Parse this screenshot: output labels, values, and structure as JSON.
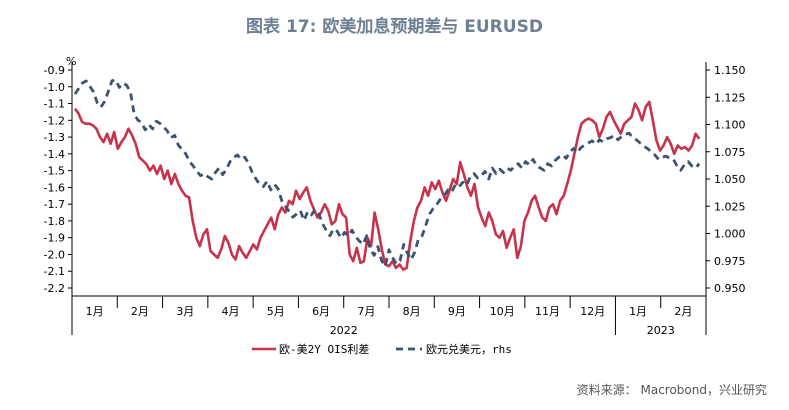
{
  "title": "图表 17: 欧美加息预期差与 EURUSD",
  "source": "资料来源： Macrobond，兴业研究",
  "chart_data": {
    "type": "line",
    "y_unit_label": "%",
    "ylim_left": [
      -2.2,
      -0.9
    ],
    "ylim_right": [
      0.95,
      1.15
    ],
    "left_ticks": [
      "-0.9",
      "-1.0",
      "-1.1",
      "-1.2",
      "-1.3",
      "-1.4",
      "-1.5",
      "-1.6",
      "-1.7",
      "-1.8",
      "-1.9",
      "-2.0",
      "-2.1",
      "-2.2"
    ],
    "right_ticks": [
      "1.150",
      "1.125",
      "1.100",
      "1.075",
      "1.050",
      "1.025",
      "1.000",
      "0.975",
      "0.950"
    ],
    "month_labels": [
      "1月",
      "2月",
      "3月",
      "4月",
      "5月",
      "6月",
      "7月",
      "8月",
      "9月",
      "10月",
      "11月",
      "12月",
      "1月",
      "2月"
    ],
    "year_labels": [
      "2022",
      "2023"
    ],
    "series": [
      {
        "name": "欧-美2Y OIS利差",
        "axis": "left",
        "color": "#c8324a",
        "values": [
          -1.13,
          -1.16,
          -1.21,
          -1.22,
          -1.22,
          -1.23,
          -1.25,
          -1.3,
          -1.33,
          -1.28,
          -1.34,
          -1.27,
          -1.37,
          -1.33,
          -1.3,
          -1.25,
          -1.29,
          -1.34,
          -1.42,
          -1.44,
          -1.46,
          -1.5,
          -1.47,
          -1.52,
          -1.47,
          -1.55,
          -1.5,
          -1.58,
          -1.52,
          -1.58,
          -1.62,
          -1.65,
          -1.66,
          -1.8,
          -1.9,
          -1.95,
          -1.88,
          -1.85,
          -1.98,
          -2.0,
          -2.02,
          -1.97,
          -1.89,
          -1.93,
          -2.0,
          -2.03,
          -1.95,
          -1.99,
          -2.02,
          -1.98,
          -1.94,
          -1.97,
          -1.9,
          -1.86,
          -1.82,
          -1.78,
          -1.85,
          -1.76,
          -1.72,
          -1.75,
          -1.68,
          -1.7,
          -1.62,
          -1.67,
          -1.63,
          -1.6,
          -1.68,
          -1.73,
          -1.78,
          -1.75,
          -1.7,
          -1.74,
          -1.82,
          -1.8,
          -1.7,
          -1.76,
          -1.78,
          -2.0,
          -2.04,
          -1.96,
          -2.05,
          -2.04,
          -1.9,
          -1.95,
          -1.75,
          -1.85,
          -1.97,
          -2.06,
          -2.07,
          -2.04,
          -2.08,
          -2.06,
          -2.09,
          -2.08,
          -1.92,
          -1.8,
          -1.72,
          -1.68,
          -1.6,
          -1.65,
          -1.57,
          -1.61,
          -1.56,
          -1.63,
          -1.68,
          -1.62,
          -1.55,
          -1.58,
          -1.45,
          -1.52,
          -1.6,
          -1.65,
          -1.58,
          -1.72,
          -1.78,
          -1.83,
          -1.75,
          -1.8,
          -1.88,
          -1.9,
          -1.86,
          -1.96,
          -1.9,
          -1.85,
          -2.02,
          -1.95,
          -1.8,
          -1.75,
          -1.68,
          -1.65,
          -1.72,
          -1.78,
          -1.8,
          -1.72,
          -1.7,
          -1.76,
          -1.68,
          -1.65,
          -1.58,
          -1.5,
          -1.4,
          -1.3,
          -1.22,
          -1.2,
          -1.19,
          -1.2,
          -1.22,
          -1.3,
          -1.25,
          -1.18,
          -1.15,
          -1.2,
          -1.24,
          -1.28,
          -1.22,
          -1.2,
          -1.18,
          -1.1,
          -1.14,
          -1.2,
          -1.12,
          -1.09,
          -1.2,
          -1.32,
          -1.38,
          -1.35,
          -1.3,
          -1.34,
          -1.4,
          -1.35,
          -1.37,
          -1.36,
          -1.38,
          -1.35,
          -1.28,
          -1.31
        ]
      },
      {
        "name": "欧元兑美元，rhs",
        "axis": "right",
        "color": "#3d5273",
        "values": [
          1.128,
          1.133,
          1.138,
          1.14,
          1.135,
          1.13,
          1.12,
          1.116,
          1.121,
          1.13,
          1.14,
          1.141,
          1.134,
          1.138,
          1.136,
          1.13,
          1.11,
          1.104,
          1.102,
          1.095,
          1.1,
          1.096,
          1.103,
          1.101,
          1.098,
          1.094,
          1.088,
          1.09,
          1.081,
          1.077,
          1.073,
          1.066,
          1.062,
          1.057,
          1.053,
          1.055,
          1.052,
          1.05,
          1.056,
          1.06,
          1.054,
          1.059,
          1.066,
          1.07,
          1.072,
          1.068,
          1.07,
          1.064,
          1.056,
          1.05,
          1.045,
          1.043,
          1.048,
          1.04,
          1.045,
          1.041,
          1.03,
          1.025,
          1.02,
          1.015,
          1.018,
          1.021,
          1.012,
          1.02,
          1.017,
          1.022,
          1.018,
          1.009,
          1.003,
          0.998,
          1.004,
          1.002,
          0.996,
          1.001,
          0.998,
          1.003,
          0.997,
          0.993,
          0.99,
          0.998,
          0.985,
          0.98,
          0.988,
          0.975,
          0.97,
          0.985,
          0.978,
          0.972,
          0.975,
          0.99,
          0.982,
          0.976,
          0.983,
          0.995,
          0.998,
          1.008,
          1.018,
          1.023,
          1.027,
          1.032,
          1.035,
          1.04,
          1.038,
          1.045,
          1.043,
          1.047,
          1.044,
          1.052,
          1.055,
          1.051,
          1.053,
          1.057,
          1.05,
          1.06,
          1.055,
          1.059,
          1.056,
          1.06,
          1.058,
          1.062,
          1.064,
          1.06,
          1.066,
          1.063,
          1.068,
          1.062,
          1.06,
          1.058,
          1.064,
          1.062,
          1.067,
          1.07,
          1.072,
          1.069,
          1.075,
          1.078,
          1.074,
          1.079,
          1.081,
          1.083,
          1.085,
          1.082,
          1.086,
          1.084,
          1.087,
          1.088,
          1.09,
          1.086,
          1.089,
          1.091,
          1.092,
          1.088,
          1.086,
          1.083,
          1.08,
          1.078,
          1.075,
          1.072,
          1.068,
          1.07,
          1.071,
          1.069,
          1.068,
          1.062,
          1.058,
          1.063,
          1.066,
          1.062,
          1.06,
          1.064
        ]
      }
    ]
  },
  "legend": {
    "item1": "欧-美2Y OIS利差",
    "item2": "欧元兑美元，rhs"
  }
}
